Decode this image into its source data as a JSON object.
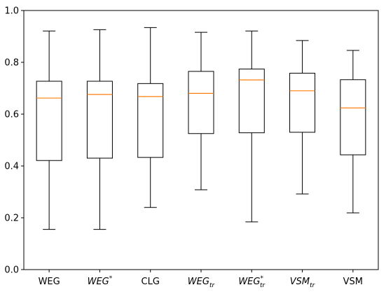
{
  "chart_data": {
    "type": "box",
    "title": "",
    "xlabel": "",
    "ylabel": "",
    "ylim": [
      0,
      1
    ],
    "yticks": [
      "0.0",
      "0.2",
      "0.4",
      "0.6",
      "0.8",
      "1.0"
    ],
    "grid": false,
    "colors": {
      "box": "#000000",
      "median": "#ff7f0e",
      "whisker": "#000000"
    },
    "categories": [
      {
        "label": "WEG",
        "base": "WEG",
        "sup": "",
        "sub": "",
        "italic": false
      },
      {
        "label": "WEG*",
        "base": "WEG",
        "sup": "*",
        "sub": "",
        "italic": true
      },
      {
        "label": "CLG",
        "base": "CLG",
        "sup": "",
        "sub": "",
        "italic": false
      },
      {
        "label": "WEG_tr",
        "base": "WEG",
        "sup": "",
        "sub": "tr",
        "italic": true
      },
      {
        "label": "WEG*_tr",
        "base": "WEG",
        "sup": "*",
        "sub": "tr",
        "italic": true
      },
      {
        "label": "VSM_tr",
        "base": "VSM",
        "sup": "",
        "sub": "tr",
        "italic": true
      },
      {
        "label": "VSM",
        "base": "VSM",
        "sup": "",
        "sub": "",
        "italic": false
      }
    ],
    "boxes": [
      {
        "whislo": 0.155,
        "q1": 0.421,
        "median": 0.662,
        "q3": 0.727,
        "whishi": 0.921
      },
      {
        "whislo": 0.155,
        "q1": 0.43,
        "median": 0.676,
        "q3": 0.727,
        "whishi": 0.926
      },
      {
        "whislo": 0.24,
        "q1": 0.433,
        "median": 0.668,
        "q3": 0.718,
        "whishi": 0.934
      },
      {
        "whislo": 0.308,
        "q1": 0.525,
        "median": 0.68,
        "q3": 0.765,
        "whishi": 0.916
      },
      {
        "whislo": 0.184,
        "q1": 0.528,
        "median": 0.732,
        "q3": 0.774,
        "whishi": 0.921
      },
      {
        "whislo": 0.292,
        "q1": 0.53,
        "median": 0.69,
        "q3": 0.758,
        "whishi": 0.884
      },
      {
        "whislo": 0.219,
        "q1": 0.443,
        "median": 0.624,
        "q3": 0.733,
        "whishi": 0.846
      }
    ]
  }
}
